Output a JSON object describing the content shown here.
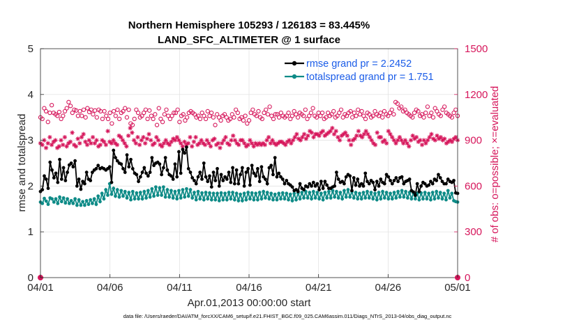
{
  "chart_data": {
    "type": "line",
    "title_line1": "Northern Hemisphere 105293 / 126183 = 83.445%",
    "title_line2": "LAND_SFC_ALTIMETER @ 1 surface",
    "xlabel": "Apr.01,2013 00:00:00 start",
    "ylabel_left": "rmse and totalspread",
    "ylabel_right": "# of obs: o=possible; ×=evaluated",
    "footer": "data file: /Users/raeder/DAI/ATM_forcXX/CAM6_setup/f.e21.FHIST_BGC.f09_025.CAM6assim.011/Diags_NTrS_2013-04/obs_diag_output.nc",
    "x_ticks": [
      "04/01",
      "04/06",
      "04/11",
      "04/16",
      "04/21",
      "04/26",
      "05/01"
    ],
    "y_left_ticks": [
      "0",
      "1",
      "2",
      "3",
      "4",
      "5"
    ],
    "y_right_ticks": [
      "0",
      "300",
      "600",
      "900",
      "1200",
      "1500"
    ],
    "xlim_days": [
      0,
      30
    ],
    "ylim_left": [
      0,
      5
    ],
    "ylim_right": [
      0,
      1500
    ],
    "grid": true,
    "legend_position": "top-right",
    "colors": {
      "rmse": "#000000",
      "spread": "#0e8b87",
      "obs": "#d6165b",
      "legend_text": "#1a5ce8"
    },
    "series": [
      {
        "name": "rmse grand pr = 2.2452",
        "axis": "left",
        "values": [
          1.88,
          1.92,
          2.22,
          2.15,
          1.95,
          2.52,
          2.35,
          2.18,
          2.28,
          2.08,
          2.58,
          2.15,
          2.4,
          2.12,
          2.3,
          2.46,
          2.5,
          2.42,
          2.55,
          2.0,
          2.15,
          1.93,
          2.1,
          2.05,
          2.3,
          2.15,
          2.12,
          2.3,
          2.35,
          2.38,
          2.45,
          2.38,
          2.4,
          2.38,
          2.35,
          2.38,
          2.42,
          2.08,
          2.78,
          2.62,
          2.55,
          2.5,
          2.48,
          2.38,
          2.3,
          2.68,
          2.42,
          2.58,
          2.38,
          2.28,
          2.25,
          2.1,
          2.2,
          2.3,
          2.4,
          2.28,
          2.22,
          2.3,
          2.62,
          2.45,
          2.5,
          2.52,
          2.48,
          2.25,
          2.4,
          2.62,
          2.35,
          2.25,
          2.22,
          2.15,
          2.48,
          2.2,
          2.75,
          2.28,
          2.8,
          2.72,
          2.85,
          2.38,
          2.3,
          2.18,
          2.12,
          2.05,
          2.2,
          2.3,
          2.15,
          2.5,
          2.2,
          2.1,
          2.22,
          1.98,
          2.3,
          2.12,
          2.38,
          2.0,
          2.25,
          2.12,
          2.2,
          2.15,
          2.3,
          2.08,
          2.4,
          2.05,
          2.35,
          2.05,
          2.25,
          2.4,
          2.0,
          2.3,
          2.38,
          2.02,
          2.45,
          2.28,
          2.22,
          2.38,
          2.1,
          2.42,
          2.2,
          2.15,
          2.05,
          2.4,
          2.45,
          2.25,
          2.62,
          2.2,
          2.28,
          2.2,
          2.15,
          2.05,
          2.12,
          2.05,
          2.02,
          1.98,
          1.9,
          1.92,
          1.88,
          2.05,
          1.95,
          1.92,
          2.0,
          1.98,
          2.05,
          2.0,
          2.08,
          2.0,
          2.05,
          1.92,
          2.1,
          1.95,
          2.1,
          2.02,
          1.95,
          1.95,
          1.98,
          2.0,
          2.3,
          2.15,
          2.08,
          2.1,
          2.05,
          2.2,
          2.25,
          2.22,
          1.9,
          2.18,
          2.02,
          2.15,
          2.0,
          2.05,
          2.0,
          2.28,
          2.1,
          2.05,
          2.12,
          2.08,
          1.92,
          2.1,
          2.0,
          2.15,
          2.08,
          2.05,
          2.25,
          2.2,
          2.12,
          2.05,
          2.12,
          2.18,
          2.1,
          2.18,
          2.2,
          2.05,
          2.1,
          2.12,
          2.15,
          1.9,
          1.87,
          1.8,
          2.05,
          1.88,
          2.0,
          2.08,
          2.05,
          2.0,
          2.02,
          2.1,
          2.05,
          2.15,
          2.12,
          2.25,
          2.18,
          2.1,
          2.05,
          2.05,
          2.15,
          2.1,
          2.08,
          2.12,
          1.85,
          1.84
        ]
      },
      {
        "name": "totalspread grand pr = 1.751",
        "axis": "left",
        "values": [
          1.65,
          1.62,
          1.73,
          1.67,
          1.6,
          1.74,
          1.72,
          1.65,
          1.72,
          1.62,
          1.76,
          1.66,
          1.74,
          1.63,
          1.72,
          1.62,
          1.68,
          1.62,
          1.72,
          1.58,
          1.7,
          1.58,
          1.66,
          1.58,
          1.68,
          1.6,
          1.7,
          1.62,
          1.72,
          1.6,
          1.78,
          1.66,
          1.84,
          1.72,
          1.92,
          1.8,
          2.05,
          1.82,
          1.95,
          1.78,
          1.92,
          1.76,
          1.9,
          1.78,
          1.88,
          1.74,
          1.86,
          1.7,
          1.88,
          1.72,
          1.85,
          1.72,
          1.86,
          1.72,
          1.88,
          1.74,
          1.9,
          1.76,
          1.94,
          1.78,
          1.98,
          1.8,
          1.96,
          1.8,
          1.98,
          1.76,
          1.92,
          1.76,
          1.9,
          1.74,
          1.88,
          1.72,
          1.9,
          1.74,
          1.92,
          1.76,
          1.94,
          1.78,
          1.92,
          1.74,
          1.86,
          1.7,
          1.88,
          1.72,
          1.85,
          1.7,
          1.86,
          1.72,
          1.85,
          1.7,
          1.84,
          1.7,
          1.84,
          1.68,
          1.85,
          1.7,
          1.84,
          1.7,
          1.86,
          1.72,
          1.86,
          1.7,
          1.84,
          1.68,
          1.82,
          1.68,
          1.84,
          1.7,
          1.86,
          1.72,
          1.85,
          1.7,
          1.84,
          1.7,
          1.86,
          1.72,
          1.88,
          1.74,
          1.86,
          1.72,
          1.84,
          1.7,
          1.82,
          1.7,
          1.84,
          1.72,
          1.85,
          1.72,
          1.84,
          1.7,
          1.82,
          1.68,
          1.84,
          1.7,
          1.85,
          1.72,
          1.86,
          1.74,
          1.88,
          1.74,
          1.86,
          1.72,
          1.88,
          1.74,
          1.86,
          1.72,
          1.84,
          1.7,
          1.86,
          1.74,
          1.88,
          1.74,
          1.9,
          1.76,
          1.88,
          1.74,
          1.86,
          1.72,
          1.9,
          1.76,
          1.92,
          1.76,
          1.88,
          1.74,
          1.86,
          1.72,
          1.84,
          1.72,
          1.86,
          1.74,
          1.88,
          1.74,
          1.86,
          1.72,
          1.84,
          1.7,
          1.86,
          1.72,
          1.88,
          1.74,
          1.86,
          1.72,
          1.84,
          1.72,
          1.86,
          1.74,
          1.88,
          1.76,
          1.9,
          1.76,
          1.88,
          1.74,
          1.86,
          1.72,
          1.85,
          1.72,
          1.84,
          1.7,
          1.85,
          1.72,
          1.86,
          1.72,
          1.84,
          1.7,
          1.86,
          1.72,
          1.88,
          1.74,
          1.86,
          1.72,
          1.84,
          1.7,
          1.9,
          1.74,
          1.84,
          1.68,
          1.66,
          1.65
        ]
      },
      {
        "name": "possible",
        "axis": "right",
        "marker": "o",
        "values": [
          1050,
          1040,
          1110,
          1090,
          1020,
          1080,
          1130,
          1080,
          1070,
          1060,
          1085,
          1040,
          1060,
          1090,
          1110,
          1150,
          1125,
          1080,
          1100,
          1095,
          1060,
          1090,
          1060,
          1100,
          1050,
          1110,
          1085,
          1100,
          1070,
          1095,
          1050,
          1100,
          1090,
          1040,
          1090,
          1060,
          1040,
          1080,
          1010,
          1090,
          1060,
          1100,
          1040,
          1080,
          1090,
          1110,
          1050,
          1100,
          1010,
          1000,
          1040,
          1100,
          1080,
          1050,
          1060,
          1080,
          1100,
          1040,
          1095,
          1060,
          1040,
          1070,
          1000,
          1110,
          1040,
          1020,
          1070,
          1100,
          1060,
          1040,
          1060,
          1080,
          1080,
          1100,
          1020,
          1060,
          1070,
          1030,
          1050,
          1080,
          1090,
          1080,
          1070,
          1050,
          1060,
          1040,
          1080,
          1060,
          1040,
          1090,
          1060,
          1080,
          1050,
          1000,
          1070,
          1050,
          1030,
          1060,
          1070,
          1050,
          1030,
          1040,
          1070,
          1050,
          1100,
          1080,
          1040,
          1050,
          1030,
          1060,
          1010,
          1030,
          1080,
          1100,
          1070,
          1060,
          1090,
          1050,
          1040,
          1080,
          1100,
          1070,
          1120,
          1060,
          1040,
          1070,
          1070,
          1050,
          1080,
          1060,
          1050,
          1060,
          1080,
          1040,
          1060,
          1090,
          1070,
          1050,
          1080,
          1070,
          1060,
          1100,
          1040,
          1060,
          1080,
          1110,
          1060,
          1050,
          1080,
          1060,
          1080,
          1040,
          1050,
          1080,
          1060,
          1070,
          1090,
          1050,
          1060,
          1080,
          1100,
          1050,
          1070,
          1060,
          1080,
          1090,
          1050,
          1080,
          1060,
          1100,
          1070,
          1090,
          1060,
          1040,
          1080,
          1070,
          1050,
          1060,
          1090,
          1070,
          1060,
          1080,
          1050,
          1090,
          1070,
          1060,
          1080,
          1100,
          1070,
          1150,
          1140,
          1110,
          1120,
          1090,
          1100,
          1080,
          1070,
          1060,
          1050,
          1080,
          1100,
          1090,
          1060,
          1070,
          1050,
          1080,
          1120,
          1060,
          1080,
          1050,
          1110,
          1090,
          1070,
          1060,
          1100,
          1120,
          1080,
          1070,
          1060,
          1050,
          1080,
          1100,
          1060
        ]
      },
      {
        "name": "evaluated",
        "axis": "right",
        "marker": "x",
        "values": [
          880,
          870,
          900,
          850,
          880,
          920,
          870,
          890,
          900,
          850,
          860,
          900,
          870,
          920,
          860,
          880,
          890,
          950,
          870,
          860,
          910,
          880,
          920,
          940,
          890,
          870,
          900,
          880,
          920,
          880,
          900,
          860,
          870,
          900,
          890,
          870,
          960,
          890,
          880,
          900,
          880,
          870,
          930,
          920,
          900,
          880,
          860,
          930,
          980,
          950,
          900,
          880,
          920,
          870,
          900,
          920,
          880,
          910,
          940,
          900,
          870,
          880,
          920,
          900,
          870,
          860,
          880,
          900,
          880,
          870,
          890,
          910,
          900,
          920,
          900,
          880,
          860,
          890,
          870,
          880,
          920,
          860,
          890,
          920,
          870,
          880,
          900,
          880,
          870,
          900,
          880,
          860,
          900,
          910,
          870,
          880,
          850,
          880,
          900,
          920,
          880,
          870,
          900,
          930,
          900,
          880,
          870,
          900,
          900,
          880,
          860,
          870,
          900,
          880,
          860,
          880,
          870,
          880,
          870,
          880,
          870,
          900,
          920,
          880,
          900,
          880,
          870,
          880,
          890,
          890,
          880,
          870,
          890,
          900,
          880,
          900,
          920,
          940,
          910,
          900,
          920,
          940,
          910,
          930,
          960,
          950,
          920,
          940,
          940,
          930,
          950,
          960,
          930,
          940,
          950,
          960,
          980,
          940,
          960,
          920,
          900,
          930,
          940,
          950,
          930,
          900,
          870,
          900,
          910,
          930,
          960,
          930,
          920,
          940,
          960,
          940,
          920,
          900,
          880,
          870,
          950,
          920,
          920,
          890,
          900,
          880,
          960,
          940,
          920,
          900,
          880,
          900,
          920,
          900,
          880,
          900,
          880,
          860,
          900,
          930,
          910,
          920,
          890,
          900,
          870,
          900,
          880,
          900,
          920,
          940,
          910,
          900,
          930,
          910,
          920,
          900,
          910,
          880,
          890,
          900,
          890,
          910,
          920,
          900
        ]
      }
    ],
    "legend": [
      {
        "series": "rmse",
        "label": "rmse grand pr = 2.2452"
      },
      {
        "series": "spread",
        "label": "totalspread grand pr = 1.751"
      }
    ]
  }
}
